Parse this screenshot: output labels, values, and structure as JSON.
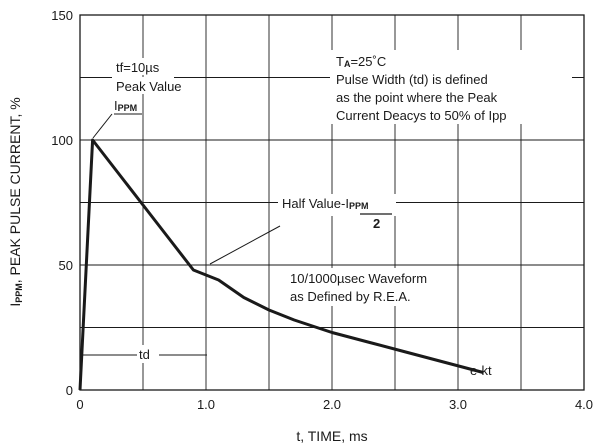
{
  "chart_data": {
    "type": "line",
    "xlabel": "t, TIME, ms",
    "ylabel": {
      "prefix": "I",
      "sub": "PPM",
      "rest": ", PEAK PULSE CURRENT, %"
    },
    "xlim": [
      0,
      4.0
    ],
    "ylim": [
      0,
      150
    ],
    "x_ticks": [
      0,
      1.0,
      2.0,
      3.0,
      4.0
    ],
    "x_tick_labels": [
      "0",
      "1.0",
      "2.0",
      "3.0",
      "4.0"
    ],
    "y_ticks": [
      0,
      50,
      100,
      150
    ],
    "y_tick_labels": [
      "0",
      "50",
      "100",
      "150"
    ],
    "grid": true,
    "series": [
      {
        "x": [
          0,
          0.1,
          0.3,
          0.5,
          0.7,
          0.9,
          1.0,
          1.1,
          1.3,
          1.5,
          1.7,
          2.0,
          2.3,
          2.6,
          2.9,
          3.2
        ],
        "y": [
          0,
          100,
          87,
          74,
          61,
          48,
          46,
          44,
          37,
          32,
          28,
          23,
          19,
          15,
          11,
          7
        ]
      }
    ],
    "annotations": {
      "tf": "tf=10µs",
      "peak_value": "Peak Value",
      "ippm_prefix": "I",
      "ippm_sub": "PPM",
      "ta_prefix": "T",
      "ta_sub": "A",
      "ta_rest": "=25˚C",
      "pw_line1": "Pulse Width (td) is defined",
      "pw_line2": "as the point where the Peak",
      "pw_line3": "Current Deacys to 50% of Ipp",
      "half_value_prefix": "Half Value-I",
      "half_value_sub": "PPM",
      "half_value_den": "2",
      "waveform_line1": "10/1000µsec Waveform",
      "waveform_line2": "as Defined by R.E.A.",
      "td": "td",
      "ekt": "e-kt"
    }
  }
}
